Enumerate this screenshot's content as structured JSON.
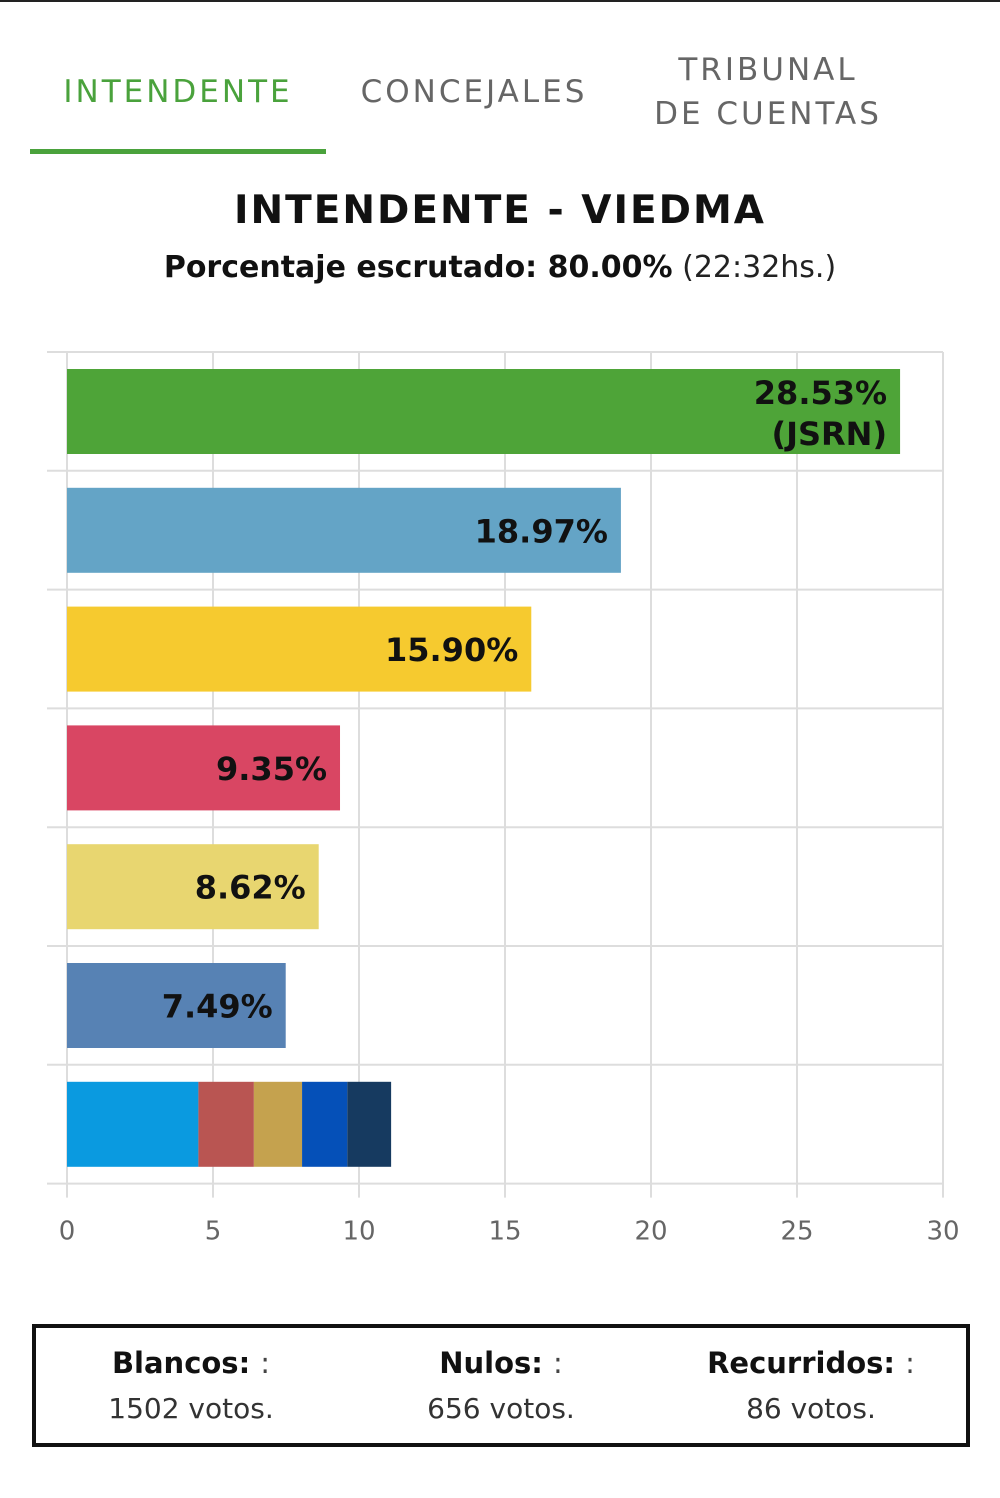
{
  "tabs": [
    {
      "label": "INTENDENTE",
      "active": true
    },
    {
      "label": "CONCEJALES",
      "active": false
    },
    {
      "label_line1": "TRIBUNAL",
      "label_line2": "DE CUENTAS",
      "active": false
    }
  ],
  "header": {
    "title": "INTENDENTE - VIEDMA",
    "progress_label": "Porcentaje escrutado: 80.00%",
    "timestamp": "(22:32hs.)"
  },
  "colors": {
    "accent": "#4aa23c"
  },
  "chart_data": {
    "type": "bar",
    "orientation": "horizontal",
    "xlim": [
      0,
      30
    ],
    "x_ticks": [
      "0",
      "5",
      "10",
      "15",
      "20",
      "25",
      "30"
    ],
    "grid": true,
    "bars": [
      {
        "value": 28.53,
        "label_line1": "28.53%",
        "label_line2": "(JSRN)",
        "color": "#4ea438"
      },
      {
        "value": 18.97,
        "label_line1": "18.97%",
        "color": "#64a4c6"
      },
      {
        "value": 15.9,
        "label_line1": "15.90%",
        "color": "#f6ca2f"
      },
      {
        "value": 9.35,
        "label_line1": "9.35%",
        "color": "#d94663"
      },
      {
        "value": 8.62,
        "label_line1": "8.62%",
        "color": "#e8d670"
      },
      {
        "value": 7.49,
        "label_line1": "7.49%",
        "color": "#5782b4"
      }
    ],
    "stacked_bar": [
      {
        "value": 4.5,
        "color": "#0a9ae0"
      },
      {
        "value": 1.9,
        "color": "#b95552"
      },
      {
        "value": 1.65,
        "color": "#c5a24e"
      },
      {
        "value": 1.55,
        "color": "#0550b8"
      },
      {
        "value": 1.5,
        "color": "#163a60"
      }
    ]
  },
  "summary": {
    "blancos": {
      "label": "Blancos:",
      "sep": ":",
      "value": "1502 votos."
    },
    "nulos": {
      "label": "Nulos:",
      "sep": ":",
      "value": "656 votos."
    },
    "recurridos": {
      "label": "Recurridos:",
      "sep": ":",
      "value": "86 votos."
    }
  }
}
